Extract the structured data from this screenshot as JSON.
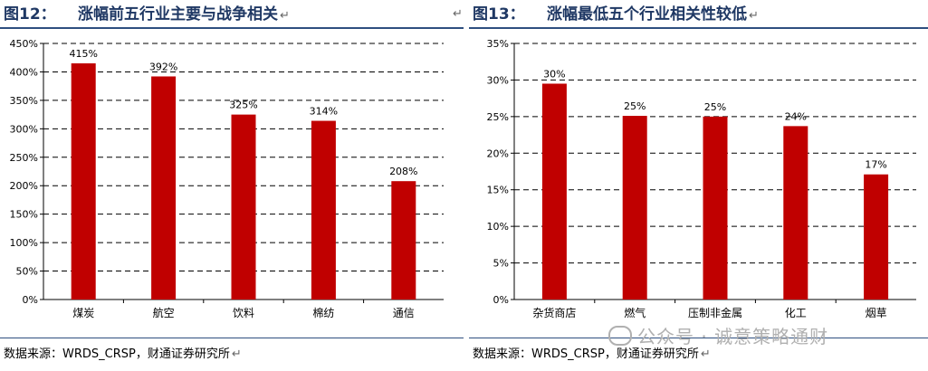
{
  "figures": [
    {
      "number": "图12：",
      "title": "涨幅前五行业主要与战争相关",
      "source": "数据来源：WRDS_CRSP，财通证券研究所"
    },
    {
      "number": "图13：",
      "title": "涨幅最低五个行业相关性较低",
      "source": "数据来源：WRDS_CRSP，财通证券研究所"
    }
  ],
  "return_mark": "↵",
  "watermark": "公众号 · 诚意策略通财",
  "colors": {
    "bar": "#c00000",
    "title": "#1f3864",
    "rule": "#2e4f7f"
  },
  "chart_data": [
    {
      "type": "bar",
      "categories": [
        "煤炭",
        "航空",
        "饮料",
        "棉纺",
        "通信"
      ],
      "values": [
        415,
        392,
        325,
        314,
        208
      ],
      "data_labels": [
        "415%",
        "392%",
        "325%",
        "314%",
        "208%"
      ],
      "ylim": [
        0,
        450
      ],
      "yticks": [
        "0%",
        "50%",
        "100%",
        "150%",
        "200%",
        "250%",
        "300%",
        "350%",
        "400%",
        "450%"
      ],
      "grid": "dashed horizontal"
    },
    {
      "type": "bar",
      "categories": [
        "杂货商店",
        "燃气",
        "压制非金属",
        "化工",
        "烟草"
      ],
      "values": [
        29.5,
        25.1,
        25.0,
        23.7,
        17.1
      ],
      "data_labels": [
        "30%",
        "25%",
        "25%",
        "24%",
        "17%"
      ],
      "ylim": [
        0,
        35
      ],
      "yticks": [
        "0%",
        "5%",
        "10%",
        "15%",
        "20%",
        "25%",
        "30%",
        "35%"
      ],
      "grid": "dashed horizontal"
    }
  ]
}
